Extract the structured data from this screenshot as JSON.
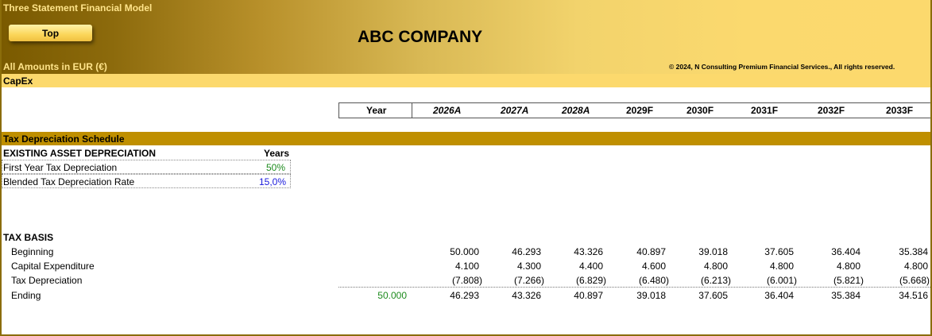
{
  "header": {
    "app_title": "Three Statement Financial Model",
    "top_button": "Top",
    "company": "ABC COMPANY",
    "amounts_note": "All Amounts in  EUR (€)",
    "copyright": "© 2024, N Consulting Premium Financial Services., All rights reserved."
  },
  "section_bar": "CapEx",
  "year_row": {
    "label": "Year",
    "years": [
      "2026A",
      "2027A",
      "2028A",
      "2029F",
      "2030F",
      "2031F",
      "2032F",
      "2033F"
    ]
  },
  "tax_schedule": {
    "title": "Tax Depreciation Schedule",
    "existing_header": "EXISTING ASSET DEPRECIATION",
    "years_col": "Years",
    "first_year_label": "First Year Tax Depreciation",
    "first_year_value": "50%",
    "blended_label": "Blended Tax Depreciation Rate",
    "blended_value": "15,0%"
  },
  "tax_basis": {
    "title": "TAX BASIS",
    "rows": [
      {
        "label": "Beginning",
        "initial": "",
        "values": [
          "50.000",
          "46.293",
          "43.326",
          "40.897",
          "39.018",
          "37.605",
          "36.404",
          "35.384"
        ]
      },
      {
        "label": "Capital Expenditure",
        "initial": "",
        "values": [
          "4.100",
          "4.300",
          "4.400",
          "4.600",
          "4.800",
          "4.800",
          "4.800",
          "4.800"
        ]
      },
      {
        "label": "Tax Depreciation",
        "initial": "",
        "values": [
          "(7.808)",
          "(7.266)",
          "(6.829)",
          "(6.480)",
          "(6.213)",
          "(6.001)",
          "(5.821)",
          "(5.668)"
        ]
      },
      {
        "label": "Ending",
        "initial": "50.000",
        "values": [
          "46.293",
          "43.326",
          "40.897",
          "39.018",
          "37.605",
          "36.404",
          "35.384",
          "34.516"
        ]
      }
    ]
  }
}
